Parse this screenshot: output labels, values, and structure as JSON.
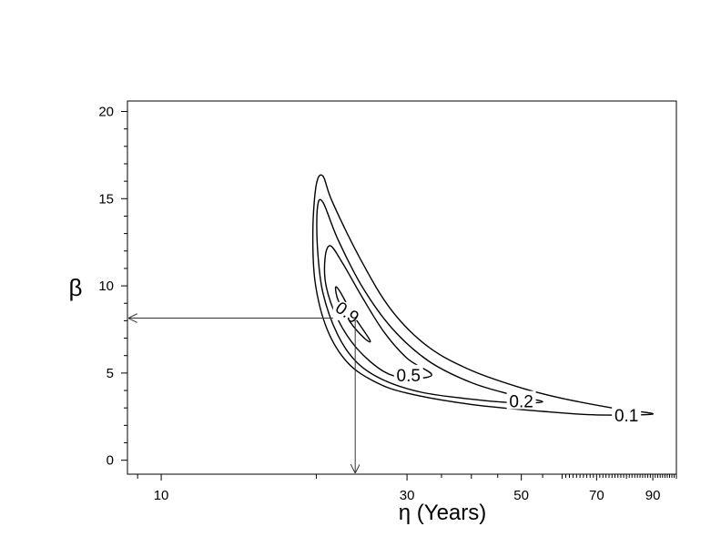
{
  "chart_data": {
    "type": "contour",
    "xlabel": "η (Years)",
    "ylabel": "β",
    "x_scale": "log",
    "xlim": [
      8.6,
      100
    ],
    "ylim": [
      -0.8,
      20.6
    ],
    "x_ticks": [
      10,
      30,
      50,
      70,
      90
    ],
    "x_minor_ticks": [
      20,
      40,
      60,
      80
    ],
    "y_ticks": [
      0,
      5,
      10,
      15,
      20
    ],
    "grid": false,
    "legend": "none",
    "contours": [
      {
        "level": "0.1",
        "points": [
          [
            90,
            2.65
          ],
          [
            75,
            3.0
          ],
          [
            60,
            3.55
          ],
          [
            50,
            4.15
          ],
          [
            40,
            5.15
          ],
          [
            33,
            6.5
          ],
          [
            28,
            8.6
          ],
          [
            24.5,
            11.4
          ],
          [
            21.5,
            14.8
          ],
          [
            20.6,
            16.3
          ],
          [
            20.0,
            15.8
          ],
          [
            19.7,
            13.2
          ],
          [
            19.9,
            10.2
          ],
          [
            21,
            7.5
          ],
          [
            23,
            5.6
          ],
          [
            26,
            4.5
          ],
          [
            30,
            3.85
          ],
          [
            40,
            3.2
          ],
          [
            55,
            2.8
          ],
          [
            70,
            2.6
          ],
          [
            90,
            2.65
          ]
        ],
        "label_at": [
          80,
          2.6
        ]
      },
      {
        "level": "0.2",
        "points": [
          [
            55,
            3.35
          ],
          [
            48,
            3.75
          ],
          [
            40,
            4.45
          ],
          [
            33,
            5.7
          ],
          [
            28,
            7.6
          ],
          [
            24.5,
            10.0
          ],
          [
            22.0,
            12.7
          ],
          [
            20.6,
            14.8
          ],
          [
            20.1,
            14.5
          ],
          [
            20.1,
            12.2
          ],
          [
            20.6,
            9.6
          ],
          [
            22,
            7.2
          ],
          [
            24,
            5.6
          ],
          [
            27,
            4.6
          ],
          [
            32,
            3.9
          ],
          [
            40,
            3.5
          ],
          [
            48,
            3.3
          ],
          [
            55,
            3.35
          ]
        ],
        "label_at": [
          50,
          3.4
        ]
      },
      {
        "level": "0.5",
        "points": [
          [
            33.5,
            4.9
          ],
          [
            30,
            5.85
          ],
          [
            27,
            7.4
          ],
          [
            24.5,
            9.4
          ],
          [
            22.5,
            11.3
          ],
          [
            21.3,
            12.3
          ],
          [
            20.8,
            11.6
          ],
          [
            20.9,
            10.0
          ],
          [
            22,
            8.1
          ],
          [
            24,
            6.4
          ],
          [
            27,
            5.1
          ],
          [
            30,
            4.7
          ],
          [
            33.5,
            4.9
          ]
        ],
        "label_at": [
          30.2,
          4.9
        ]
      },
      {
        "level": "0.9",
        "points": [
          [
            25.4,
            6.9
          ],
          [
            23.5,
            8.4
          ],
          [
            22.2,
            9.7
          ],
          [
            21.8,
            9.9
          ],
          [
            22.1,
            9.1
          ],
          [
            23.3,
            7.9
          ],
          [
            24.8,
            7.0
          ],
          [
            25.4,
            6.9
          ]
        ],
        "label_at": [
          23.0,
          8.5
        ]
      }
    ],
    "reference_point": {
      "eta": 23.8,
      "beta": 8.15
    }
  }
}
